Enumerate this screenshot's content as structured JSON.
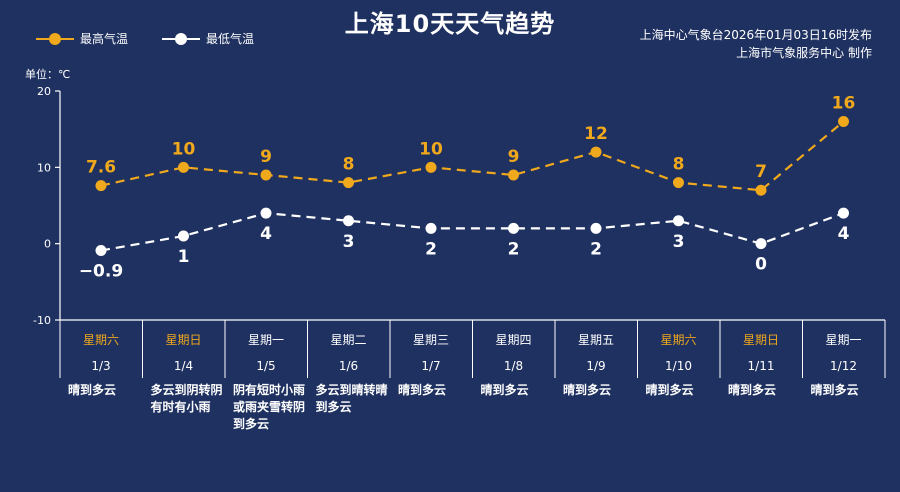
{
  "title": "上海10天天气趋势",
  "legend": {
    "high": "最高气温",
    "low": "最低气温"
  },
  "source": {
    "line1": "上海中心气象台2026年01月03日16时发布",
    "line2": "上海市气象服务中心  制作"
  },
  "unit_label": "单位：℃",
  "colors": {
    "background": "#1f3160",
    "high": "#f0a81c",
    "low": "#ffffff",
    "weekend_label": "#f0a81c",
    "weekday_label": "#ffffff"
  },
  "chart_data": {
    "type": "line",
    "title": "上海10天天气趋势",
    "ylabel": "单位：℃",
    "ylim": [
      -10,
      20
    ],
    "yticks": [
      -10,
      0,
      10,
      20
    ],
    "categories": [
      "1/3",
      "1/4",
      "1/5",
      "1/6",
      "1/7",
      "1/8",
      "1/9",
      "1/10",
      "1/11",
      "1/12"
    ],
    "weekdays": [
      "星期六",
      "星期日",
      "星期一",
      "星期二",
      "星期三",
      "星期四",
      "星期五",
      "星期六",
      "星期日",
      "星期一"
    ],
    "weekend": [
      true,
      true,
      false,
      false,
      false,
      false,
      false,
      true,
      true,
      false
    ],
    "weather": [
      "晴到多云",
      "多云到阴转阴有时有小雨",
      "阴有短时小雨或雨夹雪转阴到多云",
      "多云到晴转晴到多云",
      "晴到多云",
      "晴到多云",
      "晴到多云",
      "晴到多云",
      "晴到多云",
      "晴到多云"
    ],
    "series": [
      {
        "name": "最高气温",
        "values": [
          7.6,
          10,
          9,
          8,
          10,
          9,
          12,
          8,
          7,
          16
        ],
        "labels": [
          "7.6",
          "10",
          "9",
          "8",
          "10",
          "9",
          "12",
          "8",
          "7",
          "16"
        ],
        "color": "#f0a81c"
      },
      {
        "name": "最低气温",
        "values": [
          -0.9,
          1,
          4,
          3,
          2,
          2,
          2,
          3,
          0,
          4
        ],
        "labels": [
          "−0.9",
          "1",
          "4",
          "3",
          "2",
          "2",
          "2",
          "3",
          "0",
          "4"
        ],
        "color": "#ffffff"
      }
    ],
    "line_style": "dashed",
    "legend_position": "top-left"
  }
}
